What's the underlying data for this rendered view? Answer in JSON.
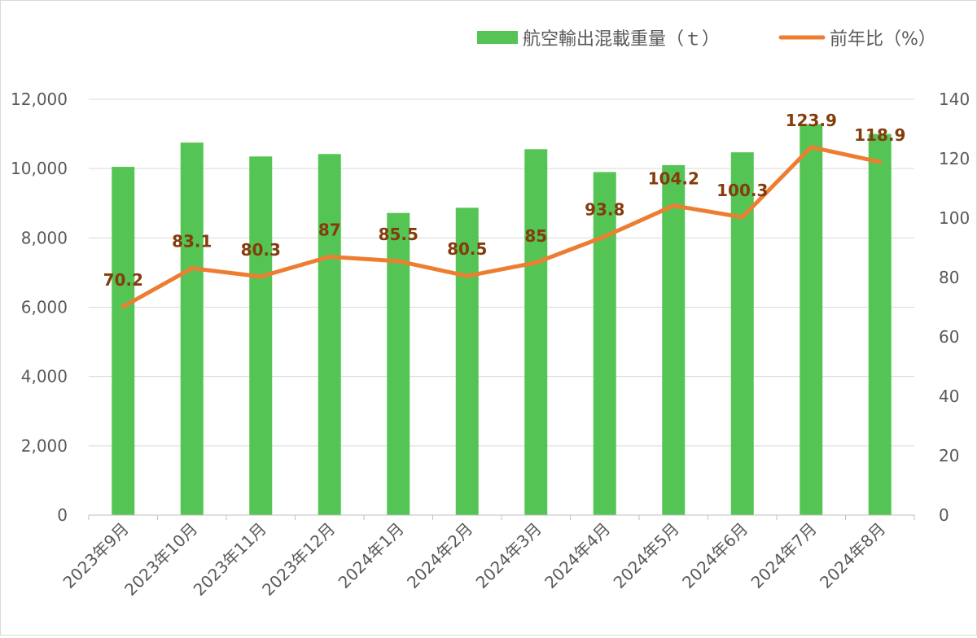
{
  "chart_data": {
    "type": "bar",
    "categories": [
      "2023年9月",
      "2023年10月",
      "2023年11月",
      "2023年12月",
      "2024年1月",
      "2024年2月",
      "2024年3月",
      "2024年4月",
      "2024年5月",
      "2024年6月",
      "2024年7月",
      "2024年8月"
    ],
    "series": [
      {
        "name": "航空輸出混載重量（ｔ）",
        "type": "bar",
        "axis": "left",
        "color": "#54c554",
        "values": [
          10050,
          10750,
          10350,
          10420,
          8720,
          8870,
          10560,
          9900,
          10100,
          10470,
          11280,
          11000
        ]
      },
      {
        "name": "前年比（%）",
        "type": "line",
        "axis": "right",
        "color": "#ed7d31",
        "values": [
          70.2,
          83.1,
          80.3,
          87,
          85.5,
          80.5,
          85,
          93.8,
          104.2,
          100.3,
          123.9,
          118.9
        ],
        "data_labels": [
          "70.2",
          "83.1",
          "80.3",
          "87",
          "85.5",
          "80.5",
          "85",
          "93.8",
          "104.2",
          "100.3",
          "123.9",
          "118.9"
        ],
        "label_color": "#843c0c"
      }
    ],
    "y_left": {
      "min": 0,
      "max": 12000,
      "ticks": [
        "0",
        "2,000",
        "4,000",
        "6,000",
        "8,000",
        "10,000",
        "12,000"
      ]
    },
    "y_right": {
      "min": 0,
      "max": 140,
      "ticks": [
        "0",
        "20",
        "40",
        "60",
        "80",
        "100",
        "120",
        "140"
      ]
    },
    "grid": true,
    "legend": "top-right"
  }
}
